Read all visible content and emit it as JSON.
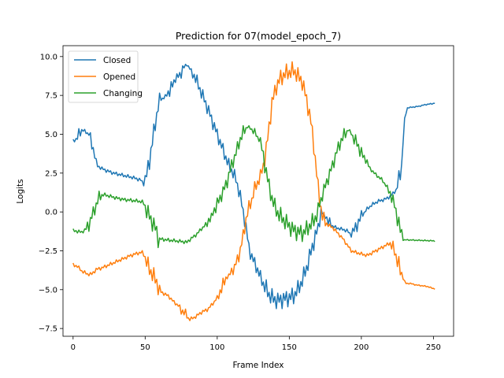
{
  "chart_data": {
    "type": "line",
    "title": "Prediction for 07(model_epoch_7)",
    "xlabel": "Frame Index",
    "ylabel": "Logits",
    "xlim": [
      -7,
      264
    ],
    "ylim": [
      -8.0,
      10.7
    ],
    "xticks": [
      0,
      50,
      100,
      150,
      200,
      250
    ],
    "yticks": [
      -7.5,
      -5.0,
      -2.5,
      0.0,
      2.5,
      5.0,
      7.5,
      10.0
    ],
    "grid": false,
    "legend": "top-left",
    "series": [
      {
        "name": "Closed",
        "color": "#1f77b4",
        "points": [
          [
            0,
            4.6
          ],
          [
            3,
            4.7
          ],
          [
            5,
            5.3
          ],
          [
            8,
            5.2
          ],
          [
            11,
            5.0
          ],
          [
            13,
            4.3
          ],
          [
            15,
            3.8
          ],
          [
            16,
            3.0
          ],
          [
            18,
            2.9
          ],
          [
            22,
            2.7
          ],
          [
            28,
            2.5
          ],
          [
            35,
            2.35
          ],
          [
            42,
            2.2
          ],
          [
            47,
            2.05
          ],
          [
            49,
            1.8
          ],
          [
            51,
            2.4
          ],
          [
            53,
            3.3
          ],
          [
            55,
            4.5
          ],
          [
            57,
            5.7
          ],
          [
            59,
            6.8
          ],
          [
            60,
            7.2
          ],
          [
            62,
            7.3
          ],
          [
            65,
            7.5
          ],
          [
            68,
            8.0
          ],
          [
            72,
            8.6
          ],
          [
            76,
            9.2
          ],
          [
            79,
            9.5
          ],
          [
            82,
            9.1
          ],
          [
            85,
            8.6
          ],
          [
            88,
            7.9
          ],
          [
            92,
            7.0
          ],
          [
            96,
            6.0
          ],
          [
            100,
            5.0
          ],
          [
            104,
            4.0
          ],
          [
            108,
            3.0
          ],
          [
            111,
            2.5
          ],
          [
            113,
            2.1
          ],
          [
            116,
            1.0
          ],
          [
            118,
            0.0
          ],
          [
            120,
            -1.0
          ],
          [
            122,
            -2.3
          ],
          [
            124,
            -2.9
          ],
          [
            127,
            -3.5
          ],
          [
            130,
            -4.2
          ],
          [
            133,
            -4.8
          ],
          [
            136,
            -5.3
          ],
          [
            139,
            -5.6
          ],
          [
            142,
            -5.7
          ],
          [
            146,
            -5.6
          ],
          [
            150,
            -5.5
          ],
          [
            153,
            -5.4
          ],
          [
            156,
            -5.0
          ],
          [
            159,
            -4.4
          ],
          [
            162,
            -3.6
          ],
          [
            165,
            -2.6
          ],
          [
            167,
            -1.9
          ],
          [
            170,
            -1.0
          ],
          [
            172,
            0.0
          ],
          [
            175,
            -0.3
          ],
          [
            178,
            -0.8
          ],
          [
            182,
            -1.0
          ],
          [
            186,
            -1.1
          ],
          [
            190,
            -1.2
          ],
          [
            193,
            -1.5
          ],
          [
            196,
            -1.0
          ],
          [
            200,
            -0.3
          ],
          [
            204,
            0.2
          ],
          [
            208,
            0.5
          ],
          [
            212,
            0.7
          ],
          [
            216,
            0.8
          ],
          [
            220,
            1.0
          ],
          [
            224,
            1.4
          ],
          [
            226,
            2.1
          ],
          [
            228,
            3.0
          ],
          [
            229,
            4.5
          ],
          [
            230,
            6.0
          ],
          [
            232,
            6.7
          ],
          [
            236,
            6.75
          ],
          [
            240,
            6.8
          ],
          [
            244,
            6.9
          ],
          [
            248,
            6.95
          ],
          [
            251,
            7.0
          ]
        ]
      },
      {
        "name": "Opened",
        "color": "#ff7f0e",
        "points": [
          [
            0,
            -3.4
          ],
          [
            3,
            -3.5
          ],
          [
            6,
            -3.8
          ],
          [
            10,
            -4.0
          ],
          [
            13,
            -4.0
          ],
          [
            16,
            -3.7
          ],
          [
            20,
            -3.6
          ],
          [
            25,
            -3.4
          ],
          [
            30,
            -3.2
          ],
          [
            35,
            -3.0
          ],
          [
            40,
            -2.8
          ],
          [
            45,
            -2.65
          ],
          [
            48,
            -2.6
          ],
          [
            50,
            -2.9
          ],
          [
            52,
            -3.5
          ],
          [
            55,
            -4.0
          ],
          [
            58,
            -4.5
          ],
          [
            60,
            -5.1
          ],
          [
            62,
            -5.2
          ],
          [
            66,
            -5.4
          ],
          [
            70,
            -5.8
          ],
          [
            74,
            -6.1
          ],
          [
            78,
            -6.7
          ],
          [
            81,
            -6.9
          ],
          [
            84,
            -6.8
          ],
          [
            87,
            -6.6
          ],
          [
            90,
            -6.4
          ],
          [
            93,
            -6.3
          ],
          [
            97,
            -5.9
          ],
          [
            100,
            -5.5
          ],
          [
            103,
            -4.9
          ],
          [
            106,
            -4.3
          ],
          [
            109,
            -4.0
          ],
          [
            111,
            -3.6
          ],
          [
            113,
            -3.3
          ],
          [
            116,
            -2.5
          ],
          [
            118,
            -1.5
          ],
          [
            120,
            -0.5
          ],
          [
            122,
            0.3
          ],
          [
            124,
            0.8
          ],
          [
            126,
            1.5
          ],
          [
            128,
            1.9
          ],
          [
            130,
            2.3
          ],
          [
            132,
            3.0
          ],
          [
            134,
            4.0
          ],
          [
            136,
            5.5
          ],
          [
            138,
            7.0
          ],
          [
            141,
            8.1
          ],
          [
            144,
            8.6
          ],
          [
            147,
            8.9
          ],
          [
            150,
            9.0
          ],
          [
            153,
            9.1
          ],
          [
            155,
            8.9
          ],
          [
            157,
            8.6
          ],
          [
            159,
            8.4
          ],
          [
            161,
            7.6
          ],
          [
            163,
            6.8
          ],
          [
            165,
            5.8
          ],
          [
            167,
            4.3
          ],
          [
            169,
            2.5
          ],
          [
            171,
            0.8
          ],
          [
            173,
            -0.3
          ],
          [
            176,
            -0.8
          ],
          [
            180,
            -1.0
          ],
          [
            184,
            -1.4
          ],
          [
            187,
            -1.7
          ],
          [
            190,
            -2.1
          ],
          [
            193,
            -2.5
          ],
          [
            196,
            -2.6
          ],
          [
            200,
            -2.7
          ],
          [
            204,
            -2.8
          ],
          [
            208,
            -2.6
          ],
          [
            212,
            -2.4
          ],
          [
            216,
            -2.2
          ],
          [
            220,
            -2.0
          ],
          [
            223,
            -2.5
          ],
          [
            225,
            -3.1
          ],
          [
            227,
            -3.8
          ],
          [
            229,
            -4.3
          ],
          [
            231,
            -4.6
          ],
          [
            234,
            -4.6
          ],
          [
            238,
            -4.7
          ],
          [
            242,
            -4.75
          ],
          [
            246,
            -4.8
          ],
          [
            249,
            -4.9
          ],
          [
            251,
            -4.95
          ]
        ]
      },
      {
        "name": "Changing",
        "color": "#2ca02c",
        "points": [
          [
            0,
            -1.2
          ],
          [
            3,
            -1.25
          ],
          [
            6,
            -1.3
          ],
          [
            9,
            -1.1
          ],
          [
            11,
            -0.8
          ],
          [
            13,
            -0.3
          ],
          [
            15,
            0.2
          ],
          [
            17,
            0.7
          ],
          [
            19,
            1.1
          ],
          [
            22,
            1.1
          ],
          [
            26,
            1.0
          ],
          [
            30,
            0.9
          ],
          [
            35,
            0.8
          ],
          [
            40,
            0.75
          ],
          [
            45,
            0.7
          ],
          [
            48,
            0.65
          ],
          [
            50,
            0.4
          ],
          [
            52,
            -0.1
          ],
          [
            54,
            -0.5
          ],
          [
            56,
            -0.8
          ],
          [
            58,
            -1.3
          ],
          [
            59,
            -1.7
          ],
          [
            61,
            -1.75
          ],
          [
            65,
            -1.8
          ],
          [
            70,
            -1.85
          ],
          [
            75,
            -1.9
          ],
          [
            79,
            -1.95
          ],
          [
            82,
            -1.7
          ],
          [
            85,
            -1.5
          ],
          [
            88,
            -1.2
          ],
          [
            92,
            -0.8
          ],
          [
            96,
            -0.2
          ],
          [
            100,
            0.5
          ],
          [
            104,
            1.3
          ],
          [
            107,
            2.0
          ],
          [
            110,
            3.0
          ],
          [
            113,
            3.8
          ],
          [
            116,
            4.7
          ],
          [
            119,
            5.3
          ],
          [
            121,
            5.5
          ],
          [
            124,
            5.3
          ],
          [
            126,
            5.0
          ],
          [
            128,
            4.8
          ],
          [
            130,
            4.5
          ],
          [
            132,
            3.6
          ],
          [
            134,
            2.6
          ],
          [
            136,
            1.6
          ],
          [
            138,
            0.9
          ],
          [
            140,
            0.3
          ],
          [
            143,
            -0.2
          ],
          [
            146,
            -0.5
          ],
          [
            149,
            -0.8
          ],
          [
            152,
            -1.1
          ],
          [
            156,
            -1.3
          ],
          [
            160,
            -1.35
          ],
          [
            163,
            -1.0
          ],
          [
            166,
            -0.7
          ],
          [
            169,
            -0.2
          ],
          [
            171,
            0.5
          ],
          [
            174,
            1.4
          ],
          [
            177,
            2.2
          ],
          [
            180,
            3.0
          ],
          [
            183,
            3.9
          ],
          [
            186,
            4.6
          ],
          [
            189,
            5.1
          ],
          [
            191,
            5.3
          ],
          [
            194,
            4.9
          ],
          [
            198,
            4.2
          ],
          [
            202,
            3.4
          ],
          [
            206,
            2.8
          ],
          [
            210,
            2.4
          ],
          [
            214,
            2.1
          ],
          [
            218,
            1.6
          ],
          [
            221,
            1.0
          ],
          [
            223,
            0.4
          ],
          [
            225,
            -0.3
          ],
          [
            227,
            -1.2
          ],
          [
            229,
            -1.8
          ],
          [
            232,
            -1.8
          ],
          [
            238,
            -1.82
          ],
          [
            244,
            -1.84
          ],
          [
            248,
            -1.85
          ],
          [
            251,
            -1.87
          ]
        ]
      }
    ]
  }
}
